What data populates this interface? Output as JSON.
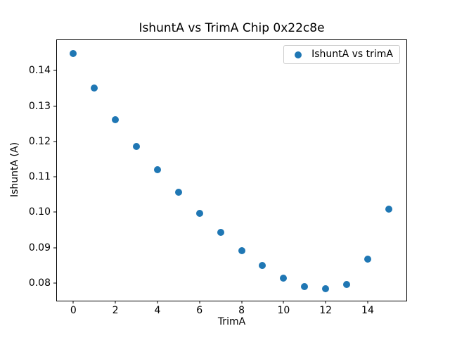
{
  "figure": {
    "title": "IshuntA vs TrimA Chip 0x22c8e",
    "xlabel": "TrimA",
    "ylabel": "IshuntA (A)"
  },
  "legend": {
    "label": "IshuntA vs trimA"
  },
  "chart_data": {
    "type": "scatter",
    "title": "IshuntA vs TrimA Chip 0x22c8e",
    "xlabel": "TrimA",
    "ylabel": "IshuntA (A)",
    "legend_entries": [
      "IshuntA vs trimA"
    ],
    "legend_position": "upper right",
    "grid": false,
    "marker_color": "#1f77b4",
    "x": [
      0,
      1,
      2,
      3,
      4,
      5,
      6,
      7,
      8,
      9,
      10,
      11,
      12,
      13,
      14,
      15
    ],
    "y": [
      0.1449,
      0.135,
      0.1261,
      0.1186,
      0.112,
      0.1057,
      0.0997,
      0.0943,
      0.0892,
      0.0849,
      0.0813,
      0.079,
      0.0784,
      0.0795,
      0.0867,
      0.1009
    ],
    "xlim": [
      -0.78,
      15.84
    ],
    "ylim": [
      0.075,
      0.1486
    ],
    "xticks": [
      0,
      2,
      4,
      6,
      8,
      10,
      12,
      14
    ],
    "xtick_labels": [
      "0",
      "2",
      "4",
      "6",
      "8",
      "10",
      "12",
      "14"
    ],
    "yticks": [
      0.08,
      0.09,
      0.1,
      0.11,
      0.12,
      0.13,
      0.14
    ],
    "ytick_labels": [
      "0.08",
      "0.09",
      "0.10",
      "0.11",
      "0.12",
      "0.13",
      "0.14"
    ]
  }
}
